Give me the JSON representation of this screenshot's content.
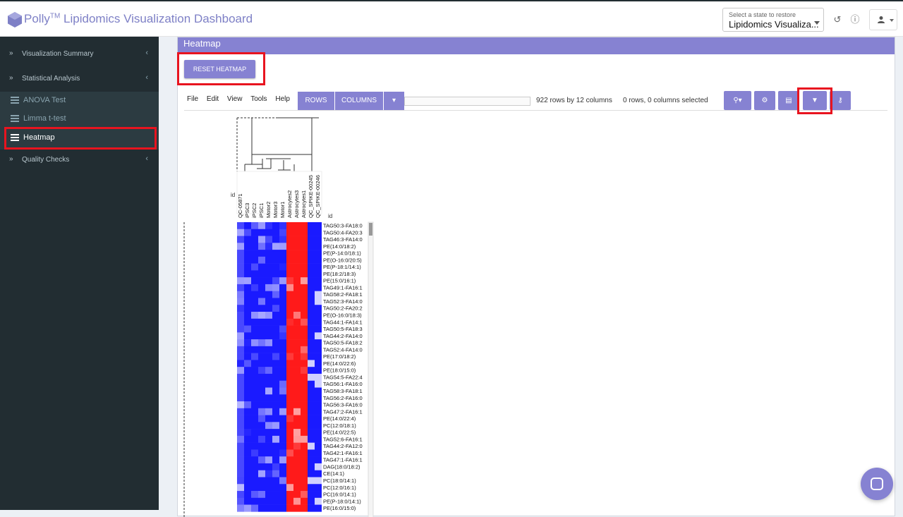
{
  "app": {
    "name": "Polly",
    "trademark": "TM",
    "title": "Lipidomics Visualization Dashboard",
    "brand_color": "#7e80c6"
  },
  "header": {
    "state_select_label": "Select a state to restore",
    "state_select_value": "Lipidomics Visualiza...",
    "history_icon": "history-icon",
    "info_icon": "info-icon",
    "user_icon": "user-icon"
  },
  "sidebar": {
    "items": [
      {
        "label": "Visualization Summary"
      },
      {
        "label": "Statistical Analysis"
      },
      {
        "label": "Quality Checks"
      }
    ],
    "sub_items": [
      {
        "label": "ANOVA Test"
      },
      {
        "label": "Limma t-test"
      },
      {
        "label": "Heatmap",
        "active": true
      }
    ]
  },
  "panel": {
    "title": "Heatmap",
    "reset_button": "RESET HEATMAP"
  },
  "toolbar": {
    "menu": [
      "File",
      "Edit",
      "View",
      "Tools",
      "Help"
    ],
    "rows_label": "ROWS",
    "columns_label": "COLUMNS",
    "summary": "922 rows by 12 columns",
    "selection": "0 rows, 0 columns selected"
  },
  "heatmap": {
    "corner_label": "id",
    "row_header_label": "id",
    "columns": [
      "QC-05871",
      "iPSC3",
      "iPSC2",
      "iPSC1",
      "Motor2",
      "Motor3",
      "Motor1",
      "Astrocytes2",
      "Astrocytes3",
      "Astrocytes1",
      "QC_SPIKE-00245",
      "QC_SPIKE-00246"
    ],
    "rows": [
      "TAG50:3-FA18:0",
      "TAG50:4-FA20:3",
      "TAG46:3-FA14:0",
      "PE(14:0/18:2)",
      "PE(P-14:0/18:1)",
      "PE(O-16:0/20:5)",
      "PE(P-18:1/14:1)",
      "PE(18:2/18:3)",
      "PE(15:0/16:1)",
      "TAG49:1-FA16:1",
      "TAG58:2-FA18:1",
      "TAG52:3-FA14:0",
      "TAG50:2-FA20:2",
      "PE(O-16:0/18:3)",
      "TAG44:1-FA14:1",
      "TAG50:5-FA18:3",
      "TAG44:2-FA14:0",
      "TAG50:5-FA18:2",
      "TAG52:4-FA14:0",
      "PE(17:0/18:2)",
      "PE(14:0/22:6)",
      "PE(18:0/15:0)",
      "TAG54:5-FA22:4",
      "TAG56:1-FA16:0",
      "TAG58:3-FA18:1",
      "TAG56:2-FA16:0",
      "TAG56:3-FA16:0",
      "TAG47:2-FA16:1",
      "PE(14:0/22:4)",
      "PC(12:0/18:1)",
      "PE(14:0/22:5)",
      "TAG52:6-FA16:1",
      "TAG44:2-FA12:0",
      "TAG42:1-FA16:1",
      "TAG47:1-FA16:1",
      "DAG(18:0/18:2)",
      "CE(14:1)",
      "PC(18:0/14:1)",
      "PC(12:0/16:1)",
      "PC(16:0/14:1)",
      "PE(P-18:0/14:1)",
      "PE(16:0/15:0)"
    ],
    "colors": {
      "low": "#1a1aff",
      "mid": "#ffffff",
      "high": "#ff1a1a"
    }
  }
}
